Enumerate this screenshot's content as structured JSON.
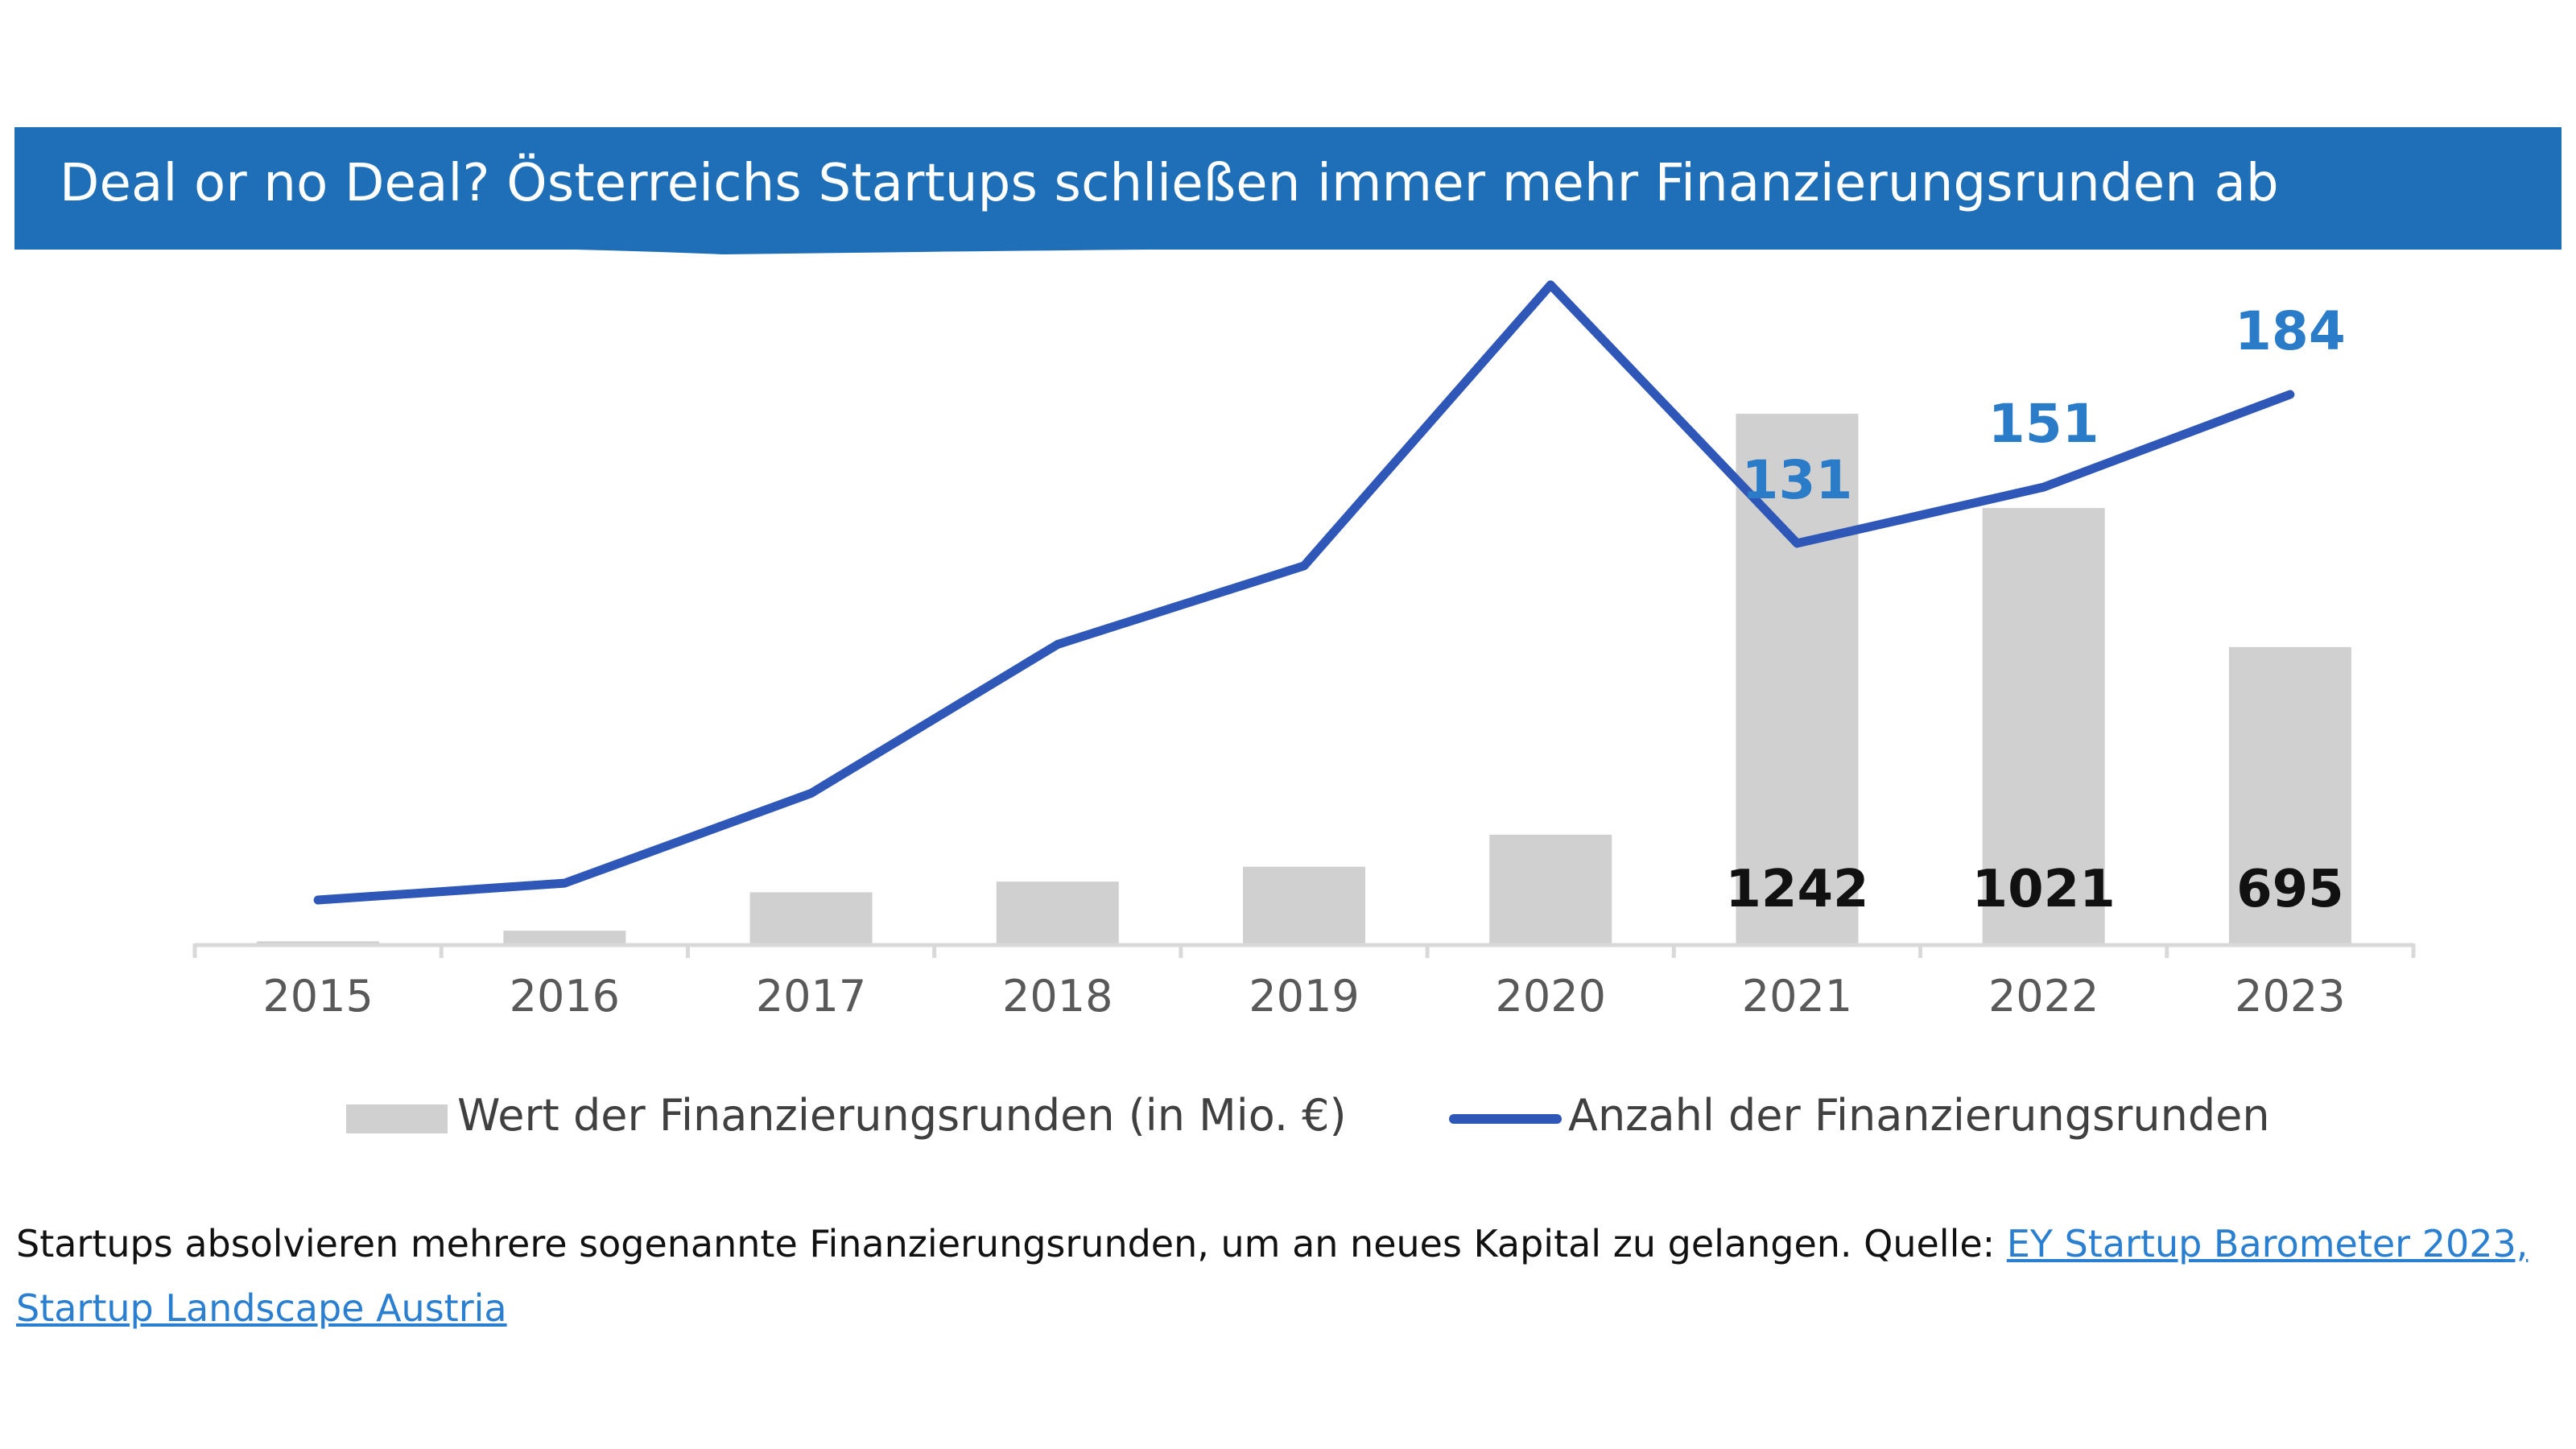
{
  "title": "Deal or no Deal? Österreichs Startups schließen immer mehr Finanzierungsrunden ab",
  "colors": {
    "banner": "#1f6fb8",
    "bar": "#d0d0d0",
    "line": "#2e57b7",
    "line_label": "#2a7bc8",
    "bar_label": "#111111",
    "axis_text": "#595959"
  },
  "chart_data": {
    "type": "bar",
    "categories": [
      "2015",
      "2016",
      "2017",
      "2018",
      "2019",
      "2020",
      "2021",
      "2022",
      "2023"
    ],
    "series": [
      {
        "name": "Wert der Finanzierungsrunden (in Mio. €)",
        "type": "bar",
        "values": [
          5,
          30,
          120,
          145,
          180,
          255,
          1242,
          1021,
          695
        ]
      },
      {
        "name": "Anzahl der Finanzierungsrunden",
        "type": "line",
        "values": [
          4,
          10,
          42,
          95,
          123,
          223,
          131,
          151,
          184
        ]
      }
    ],
    "bar_labels": {
      "6": "1242",
      "7": "1021",
      "8": "695"
    },
    "line_labels": {
      "6": "131",
      "7": "151",
      "8": "184"
    },
    "bar_ylim": [
      0,
      1242
    ],
    "line_ylim": [
      0,
      184
    ]
  },
  "legend": {
    "bar_label": "Wert der Finanzierungsrunden (in Mio. €)",
    "line_label": "Anzahl der Finanzierungsrunden"
  },
  "caption": {
    "text": "Startups absolvieren mehrere sogenannte Finanzierungsrunden, um an neues Kapital zu gelangen. Quelle: ",
    "link1": "EY Startup Barometer 2023,",
    "link2": "Startup Landscape Austria"
  }
}
